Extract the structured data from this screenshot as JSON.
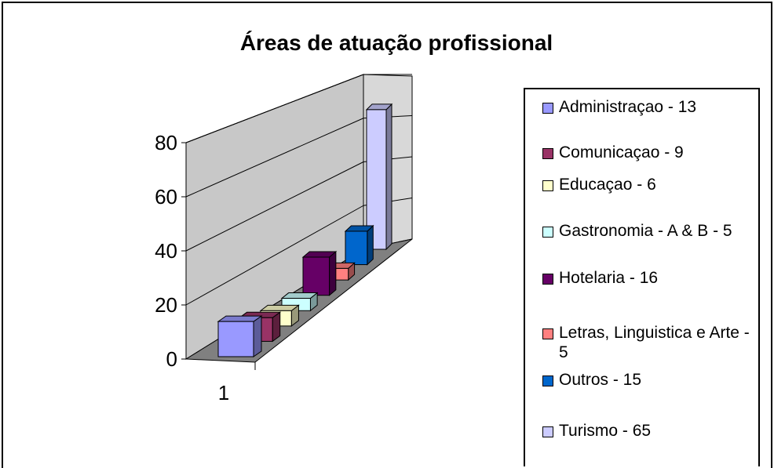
{
  "chart_data": {
    "type": "bar3d",
    "title": "Áreas de atuação profissional",
    "categories": [
      "1"
    ],
    "series": [
      {
        "name": "Administraçao - 13",
        "color": "#9999ff",
        "values": [
          13
        ]
      },
      {
        "name": "Comunicaçao - 9",
        "color": "#993366",
        "values": [
          9
        ]
      },
      {
        "name": "Educaçao - 6",
        "color": "#ffffcc",
        "values": [
          6
        ]
      },
      {
        "name": "Gastronomia - A & B - 5",
        "color": "#ccffff",
        "values": [
          5
        ]
      },
      {
        "name": "Hotelaria - 16",
        "color": "#660066",
        "values": [
          16
        ]
      },
      {
        "name": "Letras, Linguistica e Arte - 5",
        "color": "#ff8080",
        "values": [
          5
        ]
      },
      {
        "name": "Outros - 15",
        "color": "#0066cc",
        "values": [
          15
        ]
      },
      {
        "name": "Turismo - 65",
        "color": "#ccccff",
        "values": [
          65
        ]
      }
    ],
    "ylim": [
      0,
      80
    ],
    "yticks": [
      0,
      20,
      40,
      60,
      80
    ],
    "grid": true,
    "legend": "right"
  }
}
